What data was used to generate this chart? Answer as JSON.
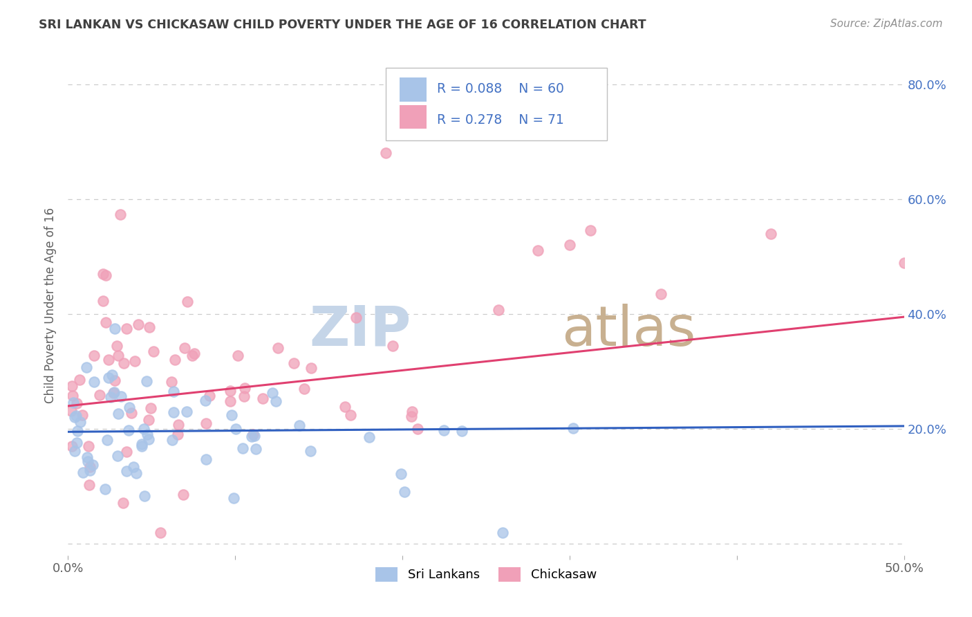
{
  "title": "SRI LANKAN VS CHICKASAW CHILD POVERTY UNDER THE AGE OF 16 CORRELATION CHART",
  "source": "Source: ZipAtlas.com",
  "ylabel": "Child Poverty Under the Age of 16",
  "xlim": [
    0.0,
    0.5
  ],
  "ylim": [
    -0.02,
    0.85
  ],
  "ytick_positions": [
    0.0,
    0.2,
    0.4,
    0.6,
    0.8
  ],
  "ytick_labels": [
    "",
    "20.0%",
    "40.0%",
    "60.0%",
    "80.0%"
  ],
  "xtick_positions": [
    0.0,
    0.1,
    0.2,
    0.3,
    0.4,
    0.5
  ],
  "xtick_labels": [
    "0.0%",
    "",
    "",
    "",
    "",
    "50.0%"
  ],
  "sri_lankan_color": "#a8c4e8",
  "chickasaw_color": "#f0a0b8",
  "sri_lankan_line_color": "#3060c0",
  "chickasaw_line_color": "#e04070",
  "background_color": "#ffffff",
  "sri_lankan_R": 0.088,
  "sri_lankan_N": 60,
  "chickasaw_R": 0.278,
  "chickasaw_N": 71,
  "legend_R1": "R = 0.088",
  "legend_N1": "N = 60",
  "legend_R2": "R = 0.278",
  "legend_N2": "N = 71",
  "legend_text_color": "#4472c4",
  "watermark_zip_color": "#c5d5e8",
  "watermark_atlas_color": "#c8b090",
  "title_color": "#404040",
  "source_color": "#909090",
  "axis_label_color": "#606060",
  "tick_color": "#606060",
  "grid_color": "#cccccc"
}
